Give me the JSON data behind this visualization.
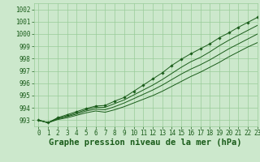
{
  "title": "Graphe pression niveau de la mer (hPa)",
  "bg_color": "#cce8cc",
  "grid_color": "#99cc99",
  "line_color": "#1a5c1a",
  "marker_color": "#1a5c1a",
  "xlim": [
    -0.5,
    23
  ],
  "ylim": [
    992.5,
    1002.5
  ],
  "xticks": [
    0,
    1,
    2,
    3,
    4,
    5,
    6,
    7,
    8,
    9,
    10,
    11,
    12,
    13,
    14,
    15,
    16,
    17,
    18,
    19,
    20,
    21,
    22,
    23
  ],
  "yticks": [
    993,
    994,
    995,
    996,
    997,
    998,
    999,
    1000,
    1001,
    1002
  ],
  "series": [
    [
      993.0,
      992.8,
      993.15,
      993.35,
      993.6,
      993.85,
      994.05,
      994.05,
      994.35,
      994.65,
      995.05,
      995.45,
      995.85,
      996.3,
      996.8,
      997.3,
      997.75,
      998.1,
      998.55,
      999.05,
      999.5,
      999.9,
      1000.3,
      1000.7
    ],
    [
      993.0,
      992.8,
      993.2,
      993.45,
      993.7,
      993.95,
      994.15,
      994.2,
      994.55,
      994.85,
      995.35,
      995.85,
      996.35,
      996.85,
      997.45,
      997.95,
      998.4,
      998.8,
      999.2,
      999.7,
      1000.1,
      1000.55,
      1000.95,
      1001.35
    ],
    [
      993.0,
      992.8,
      993.1,
      993.3,
      993.5,
      993.75,
      993.9,
      993.85,
      994.1,
      994.4,
      994.75,
      995.1,
      995.45,
      995.85,
      996.3,
      996.75,
      997.15,
      997.5,
      997.9,
      998.35,
      998.8,
      999.2,
      999.6,
      1000.0
    ],
    [
      993.0,
      992.8,
      993.05,
      993.2,
      993.4,
      993.6,
      993.75,
      993.65,
      993.85,
      994.1,
      994.4,
      994.7,
      995.0,
      995.35,
      995.75,
      996.15,
      996.55,
      996.9,
      997.3,
      997.7,
      998.15,
      998.55,
      998.95,
      999.3
    ]
  ],
  "series_with_markers": [
    0,
    1,
    2,
    3
  ],
  "title_fontsize": 7.5,
  "tick_fontsize": 5.5,
  "figwidth": 3.2,
  "figheight": 2.0,
  "dpi": 100
}
